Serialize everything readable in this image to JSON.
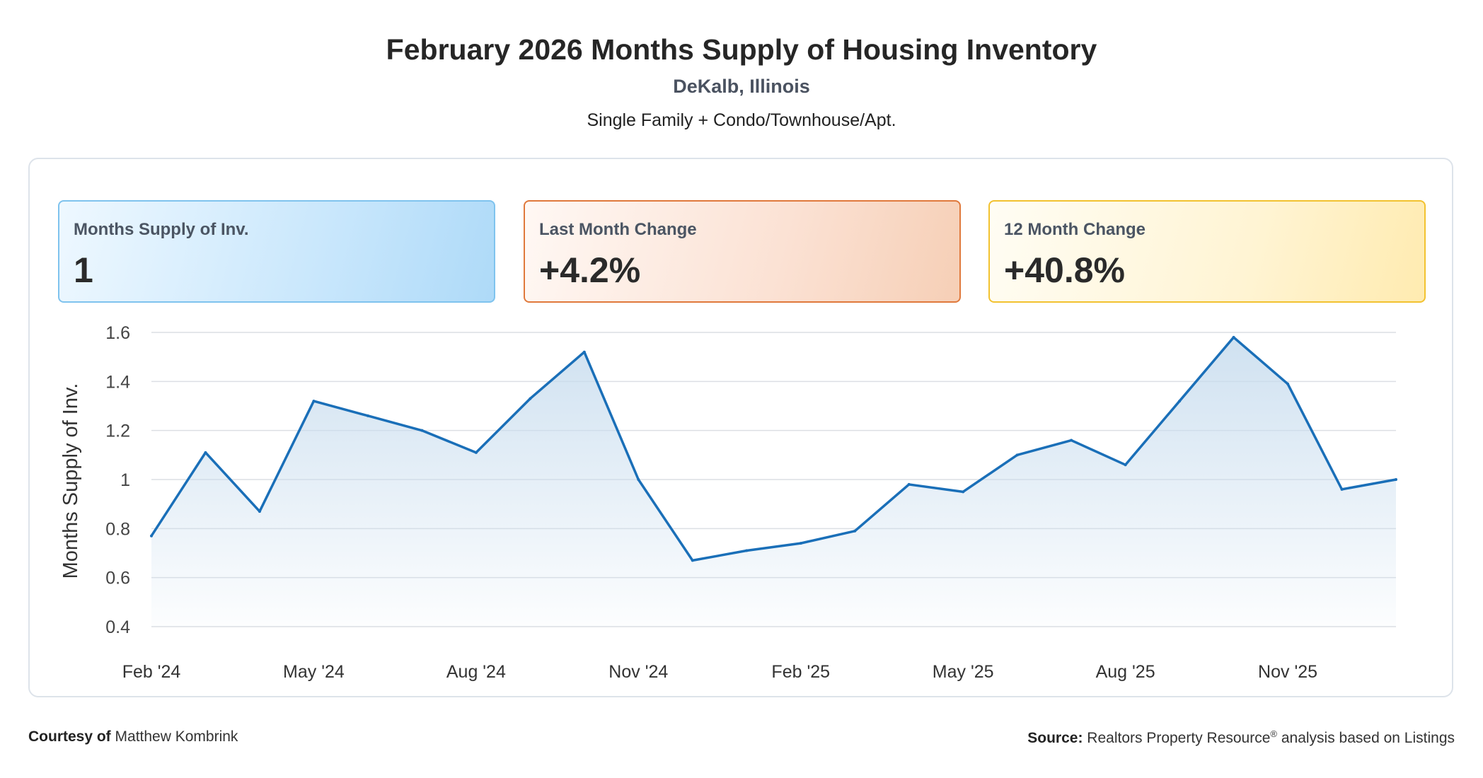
{
  "header": {
    "title": "February 2026 Months Supply of Housing Inventory",
    "location": "DeKalb, Illinois",
    "property_type": "Single Family + Condo/Townhouse/Apt."
  },
  "cards": [
    {
      "label": "Months Supply of Inv.",
      "value": "1"
    },
    {
      "label": "Last Month Change",
      "value": "+4.2%"
    },
    {
      "label": "12 Month Change",
      "value": "+40.8%"
    }
  ],
  "colors": {
    "line": "#1a6fb8",
    "fill_top": "#c7dcee",
    "grid": "#dcdfe4",
    "card_blue": "#bfe3fb",
    "card_orange": "#f8d6c2",
    "card_yellow": "#fff0c0"
  },
  "chart_data": {
    "type": "area",
    "ylabel": "Months Supply of Inv.",
    "xlabel": "",
    "x": [
      "Feb '24",
      "Mar '24",
      "Apr '24",
      "May '24",
      "Jun '24",
      "Jul '24",
      "Aug '24",
      "Sep '24",
      "Oct '24",
      "Nov '24",
      "Dec '24",
      "Jan '25",
      "Feb '25",
      "Mar '25",
      "Apr '25",
      "May '25",
      "Jun '25",
      "Jul '25",
      "Aug '25",
      "Sep '25",
      "Oct '25",
      "Nov '25",
      "Dec '25",
      "Jan '26"
    ],
    "x_tick_labels": [
      "Feb '24",
      "May '24",
      "Aug '24",
      "Nov '24",
      "Feb '25",
      "May '25",
      "Aug '25",
      "Nov '25"
    ],
    "series": [
      {
        "values": [
          0.77,
          1.11,
          0.87,
          1.32,
          1.26,
          1.2,
          1.11,
          1.33,
          1.52,
          1.0,
          0.67,
          0.71,
          0.74,
          0.79,
          0.98,
          0.95,
          1.1,
          1.16,
          1.06,
          1.32,
          1.58,
          1.39,
          0.96,
          1.0
        ]
      }
    ],
    "ylim": [
      0.4,
      1.6
    ],
    "y_ticks": [
      "1.6",
      "1.4",
      "1.2",
      "1",
      "0.8",
      "0.6",
      "0.4"
    ],
    "grid": true
  },
  "footer": {
    "courtesy_label": "Courtesy of",
    "courtesy_name": "Matthew Kombrink",
    "source_label": "Source:",
    "source_text": "Realtors Property Resource",
    "source_mark": "®",
    "source_suffix": "analysis based on Listings"
  }
}
